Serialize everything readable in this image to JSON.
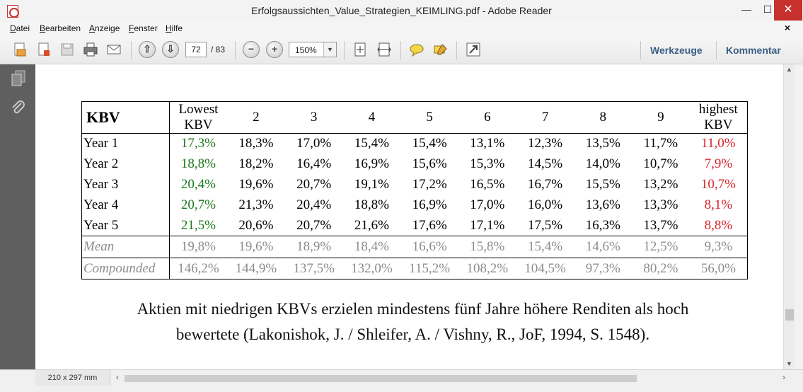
{
  "window": {
    "title": "Erfolgsaussichten_Value_Strategien_KEIMLING.pdf - Adobe Reader",
    "minimize": "—",
    "maximize": "☐",
    "close": "✕"
  },
  "menu": {
    "items": [
      "Datei",
      "Bearbeiten",
      "Anzeige",
      "Fenster",
      "Hilfe"
    ],
    "close": "×"
  },
  "toolbar": {
    "page_current": "72",
    "page_total": "/ 83",
    "zoom": "150%",
    "zoom_out": "−",
    "zoom_in": "+",
    "prev_page": "⇧",
    "next_page": "⇩",
    "tools_label": "Werkzeuge",
    "comment_label": "Kommentar"
  },
  "status": {
    "page_size": "210 x 297 mm"
  },
  "table": {
    "header": [
      "KBV",
      "Lowest\nKBV",
      "2",
      "3",
      "4",
      "5",
      "6",
      "7",
      "8",
      "9",
      "highest\nKBV"
    ],
    "rows": [
      {
        "label": "Year 1",
        "values": [
          "17,3%",
          "18,3%",
          "17,0%",
          "15,4%",
          "15,4%",
          "13,1%",
          "12,3%",
          "13,5%",
          "11,7%",
          "11,0%"
        ]
      },
      {
        "label": "Year 2",
        "values": [
          "18,8%",
          "18,2%",
          "16,4%",
          "16,9%",
          "15,6%",
          "15,3%",
          "14,5%",
          "14,0%",
          "10,7%",
          "7,9%"
        ]
      },
      {
        "label": "Year 3",
        "values": [
          "20,4%",
          "19,6%",
          "20,7%",
          "19,1%",
          "17,2%",
          "16,5%",
          "16,7%",
          "15,5%",
          "13,2%",
          "10,7%"
        ]
      },
      {
        "label": "Year 4",
        "values": [
          "20,7%",
          "21,3%",
          "20,4%",
          "18,8%",
          "16,9%",
          "17,0%",
          "16,0%",
          "13,6%",
          "13,3%",
          "8,1%"
        ]
      },
      {
        "label": "Year 5",
        "values": [
          "21,5%",
          "20,6%",
          "20,7%",
          "21,6%",
          "17,6%",
          "17,1%",
          "17,5%",
          "16,3%",
          "13,7%",
          "8,8%"
        ]
      }
    ],
    "mean": {
      "label": "Mean",
      "values": [
        "19,8%",
        "19,6%",
        "18,9%",
        "18,4%",
        "16,6%",
        "15,8%",
        "15,4%",
        "14,6%",
        "12,5%",
        "9,3%"
      ]
    },
    "compounded": {
      "label": "Compounded",
      "values": [
        "146,2%",
        "144,9%",
        "137,5%",
        "132,0%",
        "115,2%",
        "108,2%",
        "104,5%",
        "97,3%",
        "80,2%",
        "56,0%"
      ]
    },
    "colors": {
      "lowest": "#1a7a1a",
      "highest": "#d8242b",
      "summary": "#8c8c8c"
    }
  },
  "caption_line1": "Aktien mit niedrigen KBVs erzielen mindestens fünf Jahre höhere Renditen als hoch",
  "caption_line2": "bewertete (Lakonishok, J. / Shleifer, A. / Vishny, R., JoF, 1994, S. 1548)."
}
